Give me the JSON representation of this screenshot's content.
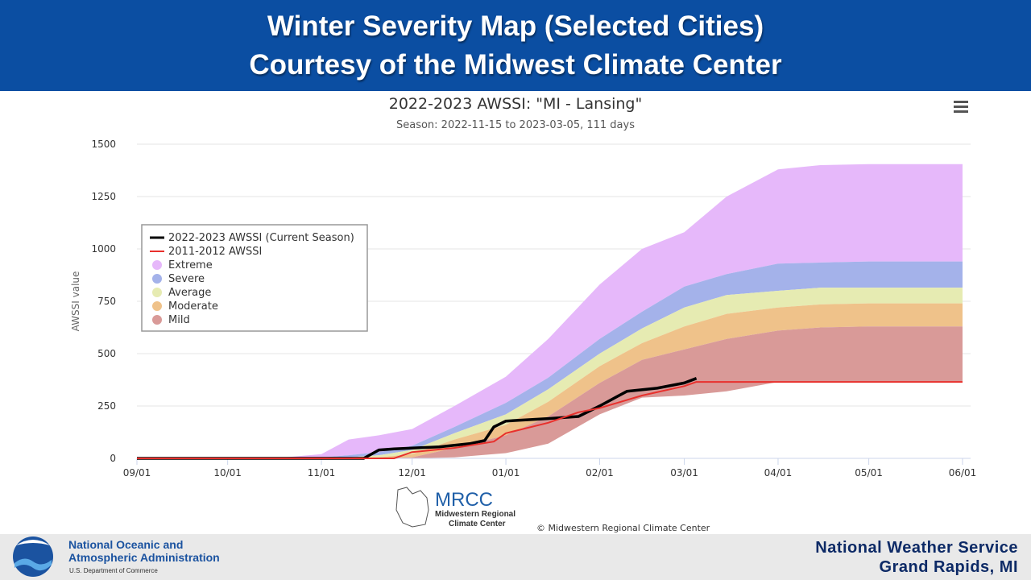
{
  "banner": {
    "line1": "Winter Severity Map (Selected Cities)",
    "line2": "Courtesy of the Midwest Climate Center"
  },
  "menu_icon": "hamburger-menu-icon",
  "credits": {
    "logo_text": "MRCC",
    "logo_line1": "Midwestern Regional",
    "logo_line2": "Climate Center",
    "copyright": "© Midwestern Regional Climate Center"
  },
  "footer": {
    "noaa_line1": "National Oceanic and",
    "noaa_line2": "Atmospheric Administration",
    "noaa_dept": "U.S. Department of Commerce",
    "nws_line1": "National  Weather  Service",
    "nws_line2": "Grand  Rapids,  MI"
  },
  "colors": {
    "banner": "#0b4ea2",
    "extreme": "#e6b8fa",
    "severe": "#a4b2ea",
    "average": "#e6ebb2",
    "moderate": "#efc28a",
    "mild": "#d99a98",
    "current": "#000000",
    "season_2011": "#e8302c"
  },
  "chart_data": {
    "type": "area",
    "title": "2022-2023 AWSSI: \"MI - Lansing\"",
    "subtitle": "Season: 2022-11-15 to 2023-03-05, 111 days",
    "ylabel": "AWSSI value",
    "xlabel": "",
    "ylim": [
      0,
      1500
    ],
    "yticks": [
      0,
      250,
      500,
      750,
      1000,
      1250,
      1500
    ],
    "xlim": [
      "2022-09-01",
      "2023-06-01"
    ],
    "xticks": [
      {
        "date": "2022-09-01",
        "label": "09/01"
      },
      {
        "date": "2022-10-01",
        "label": "10/01"
      },
      {
        "date": "2022-11-01",
        "label": "11/01"
      },
      {
        "date": "2022-12-01",
        "label": "12/01"
      },
      {
        "date": "2023-01-01",
        "label": "01/01"
      },
      {
        "date": "2023-02-01",
        "label": "02/01"
      },
      {
        "date": "2023-03-01",
        "label": "03/01"
      },
      {
        "date": "2023-04-01",
        "label": "04/01"
      },
      {
        "date": "2023-05-01",
        "label": "05/01"
      },
      {
        "date": "2023-06-01",
        "label": "06/01"
      }
    ],
    "grid": true,
    "legend_position": "left",
    "legend": [
      {
        "name": "2022-2023 AWSSI (Current Season)",
        "kind": "line",
        "color": "#000000"
      },
      {
        "name": "2011-2012 AWSSI",
        "kind": "line",
        "color": "#e8302c"
      },
      {
        "name": "Extreme",
        "kind": "band",
        "color": "#e6b8fa"
      },
      {
        "name": "Severe",
        "kind": "band",
        "color": "#a4b2ea"
      },
      {
        "name": "Average",
        "kind": "band",
        "color": "#e6ebb2"
      },
      {
        "name": "Moderate",
        "kind": "band",
        "color": "#efc28a"
      },
      {
        "name": "Mild",
        "kind": "band",
        "color": "#d99a98"
      }
    ],
    "bands": {
      "dates": [
        "2022-09-01",
        "2022-10-20",
        "2022-11-01",
        "2022-11-10",
        "2022-11-20",
        "2022-12-01",
        "2022-12-15",
        "2023-01-01",
        "2023-01-15",
        "2023-02-01",
        "2023-02-15",
        "2023-03-01",
        "2023-03-15",
        "2023-04-01",
        "2023-04-15",
        "2023-05-01",
        "2023-06-01"
      ],
      "extreme_top": [
        0,
        5,
        20,
        90,
        110,
        140,
        250,
        390,
        570,
        830,
        1000,
        1080,
        1250,
        1380,
        1400,
        1405,
        1405
      ],
      "severe_top": [
        0,
        0,
        5,
        15,
        30,
        60,
        150,
        265,
        385,
        570,
        700,
        820,
        880,
        930,
        935,
        940,
        940
      ],
      "average_top": [
        0,
        0,
        0,
        5,
        15,
        40,
        120,
        210,
        330,
        500,
        620,
        720,
        780,
        800,
        815,
        815,
        815
      ],
      "moderate_top": [
        0,
        0,
        0,
        0,
        5,
        20,
        90,
        160,
        270,
        440,
        550,
        630,
        690,
        720,
        735,
        740,
        740
      ],
      "mild_top": [
        0,
        0,
        0,
        0,
        0,
        5,
        50,
        110,
        200,
        360,
        470,
        520,
        570,
        610,
        625,
        630,
        630
      ],
      "bottom": [
        0,
        0,
        0,
        0,
        0,
        0,
        5,
        25,
        70,
        210,
        290,
        300,
        320,
        365,
        365,
        365,
        365
      ]
    },
    "series": [
      {
        "name": "2022-2023 AWSSI (Current Season)",
        "dates": [
          "2022-09-01",
          "2022-11-15",
          "2022-11-20",
          "2022-11-25",
          "2022-12-10",
          "2022-12-20",
          "2022-12-25",
          "2022-12-28",
          "2023-01-01",
          "2023-01-15",
          "2023-01-25",
          "2023-02-01",
          "2023-02-10",
          "2023-02-20",
          "2023-03-01",
          "2023-03-05"
        ],
        "values": [
          0,
          0,
          40,
          45,
          55,
          70,
          85,
          150,
          178,
          190,
          200,
          250,
          320,
          335,
          360,
          382
        ]
      },
      {
        "name": "2011-2012 AWSSI",
        "dates": [
          "2022-09-01",
          "2022-11-25",
          "2022-12-01",
          "2022-12-15",
          "2022-12-28",
          "2023-01-01",
          "2023-01-15",
          "2023-01-25",
          "2023-02-01",
          "2023-02-15",
          "2023-03-01",
          "2023-03-05",
          "2023-06-01"
        ],
        "values": [
          0,
          0,
          30,
          50,
          80,
          120,
          170,
          220,
          240,
          300,
          345,
          365,
          365
        ]
      }
    ]
  }
}
